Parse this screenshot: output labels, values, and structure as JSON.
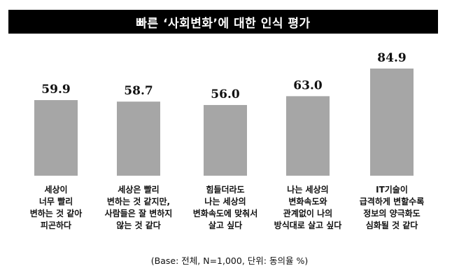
{
  "title": "빠른 ‘사회변화’에 대한 인식 평가",
  "footnote": "(Base: 전체, N=1,000, 단위: 동의율 %)",
  "colors": {
    "bar": "#a6a6a6",
    "title_bg": "#000000",
    "title_fg": "#ffffff"
  },
  "chart_data": {
    "type": "bar",
    "categories": [
      [
        "세상이",
        "너무 빨리",
        "변하는 것 같아",
        "피곤하다"
      ],
      [
        "세상은 빨리",
        "변하는 것 같지만,",
        "사람들은 잘 변하지",
        "않는 것 같다"
      ],
      [
        "힘들더라도",
        "나는 세상의",
        "변화속도에 맞춰서",
        "살고 싶다"
      ],
      [
        "나는 세상의",
        "변화속도와",
        "관계없이 나의",
        "방식대로 살고 싶다"
      ],
      [
        "IT기술이",
        "급격하게 변할수록",
        "정보의 양극화도",
        "심화될 것 같다"
      ]
    ],
    "values": [
      59.9,
      58.7,
      56.0,
      63.0,
      84.9
    ],
    "value_labels": [
      "59.9",
      "58.7",
      "56.0",
      "63.0",
      "84.9"
    ],
    "ylim": [
      0,
      100
    ]
  }
}
